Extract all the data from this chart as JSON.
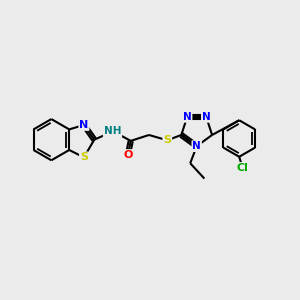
{
  "bg_color": "#ebebeb",
  "bond_color": "#000000",
  "atom_colors": {
    "S": "#cccc00",
    "N": "#0000ff",
    "O": "#ff0000",
    "Cl": "#00aa00",
    "H": "#008080",
    "C": "#000000"
  },
  "font_size": 8,
  "figsize": [
    3.0,
    3.0
  ],
  "dpi": 100
}
